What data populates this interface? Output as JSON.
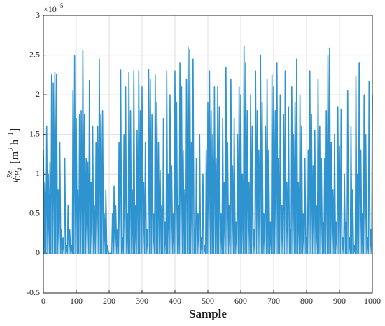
{
  "chart_data": {
    "type": "line",
    "xlabel": "Sample",
    "ylabel": {
      "base": "v",
      "sub": "CH",
      "subsub": "4",
      "sup": "Re",
      "unit_open": "[m",
      "unit_sup": "3",
      "unit_mid": " h",
      "unit_mid_sup": "−1",
      "unit_close": "]"
    },
    "y_multiplier": {
      "base": "×10",
      "exp": "−5"
    },
    "xlim": [
      0,
      1000
    ],
    "xticks": [
      0,
      100,
      200,
      300,
      400,
      500,
      600,
      700,
      800,
      900,
      1000
    ],
    "ylim": [
      -0.5,
      3
    ],
    "yticks": [
      -0.5,
      0,
      0.5,
      1,
      1.5,
      2,
      2.5,
      3
    ],
    "grid": true,
    "series": [
      {
        "color": "#2f93cf",
        "x": [
          0,
          3,
          5,
          8,
          10,
          13,
          15,
          18,
          20,
          23,
          25,
          28,
          30,
          33,
          35,
          38,
          40,
          43,
          45,
          48,
          50,
          53,
          55,
          58,
          60,
          63,
          65,
          68,
          70,
          73,
          75,
          78,
          80,
          83,
          85,
          88,
          90,
          93,
          95,
          98,
          100,
          103,
          105,
          108,
          110,
          113,
          115,
          118,
          120,
          123,
          125,
          128,
          130,
          133,
          135,
          138,
          140,
          143,
          145,
          148,
          150,
          153,
          155,
          158,
          160,
          163,
          165,
          168,
          170,
          173,
          175,
          178,
          180,
          183,
          185,
          188,
          190,
          193,
          195,
          198,
          200,
          203,
          205,
          208,
          210,
          213,
          215,
          218,
          220,
          223,
          225,
          228,
          230,
          233,
          235,
          238,
          240,
          243,
          245,
          248,
          250,
          253,
          255,
          258,
          260,
          263,
          265,
          268,
          270,
          273,
          275,
          278,
          280,
          283,
          285,
          288,
          290,
          293,
          295,
          298,
          300,
          303,
          305,
          308,
          310,
          313,
          315,
          318,
          320,
          323,
          325,
          328,
          330,
          333,
          335,
          338,
          340,
          343,
          345,
          348,
          350,
          353,
          355,
          358,
          360,
          363,
          365,
          368,
          370,
          373,
          375,
          378,
          380,
          383,
          385,
          388,
          390,
          393,
          395,
          398,
          400,
          403,
          405,
          408,
          410,
          413,
          415,
          418,
          420,
          423,
          425,
          428,
          430,
          433,
          435,
          438,
          440,
          443,
          445,
          448,
          450,
          453,
          455,
          458,
          460,
          463,
          465,
          468,
          470,
          473,
          475,
          478,
          480,
          483,
          485,
          488,
          490,
          493,
          495,
          498,
          500,
          503,
          505,
          508,
          510,
          513,
          515,
          518,
          520,
          523,
          525,
          528,
          530,
          533,
          535,
          538,
          540,
          543,
          545,
          548,
          550,
          553,
          555,
          558,
          560,
          563,
          565,
          568,
          570,
          573,
          575,
          578,
          580,
          583,
          585,
          588,
          590,
          593,
          595,
          598,
          600,
          603,
          605,
          608,
          610,
          613,
          615,
          618,
          620,
          623,
          625,
          628,
          630,
          633,
          635,
          638,
          640,
          643,
          645,
          648,
          650,
          653,
          655,
          658,
          660,
          663,
          665,
          668,
          670,
          673,
          675,
          678,
          680,
          683,
          685,
          688,
          690,
          693,
          695,
          698,
          700,
          703,
          705,
          708,
          710,
          713,
          715,
          718,
          720,
          723,
          725,
          728,
          730,
          733,
          735,
          738,
          740,
          743,
          745,
          748,
          750,
          753,
          755,
          758,
          760,
          763,
          765,
          768,
          770,
          773,
          775,
          778,
          780,
          783,
          785,
          788,
          790,
          793,
          795,
          798,
          800,
          803,
          805,
          808,
          810,
          813,
          815,
          818,
          820,
          823,
          825,
          828,
          830,
          833,
          835,
          838,
          840,
          843,
          845,
          848,
          850,
          853,
          855,
          858,
          860,
          863,
          865,
          868,
          870,
          873,
          875,
          878,
          880,
          883,
          885,
          888,
          890,
          893,
          895,
          898,
          900,
          903,
          905,
          908,
          910,
          913,
          915,
          918,
          920,
          923,
          925,
          928,
          930,
          933,
          935,
          938,
          940,
          943,
          945,
          948,
          950,
          953,
          955,
          958,
          960,
          963,
          965,
          968,
          970,
          973,
          975,
          978,
          980,
          983,
          985,
          988,
          990,
          993,
          995,
          998,
          1000
        ],
        "values": [
          1.3,
          0,
          0.9,
          0,
          1.6,
          0,
          1.0,
          0,
          1.15,
          0,
          2.25,
          0,
          2.15,
          0,
          2.28,
          0,
          2.26,
          0,
          0.8,
          0,
          1.4,
          0,
          0.3,
          0,
          0.2,
          0,
          1.2,
          0,
          0.1,
          0,
          0.6,
          0,
          0.3,
          0,
          0.1,
          0,
          2.05,
          0,
          2.49,
          0,
          1.7,
          0,
          0.8,
          0,
          1.75,
          0,
          1.8,
          0,
          2.56,
          0,
          1.75,
          0,
          1.2,
          0,
          1.15,
          0,
          2.18,
          0,
          0.9,
          0,
          1.6,
          0,
          0.6,
          0,
          1.4,
          0,
          1.6,
          0,
          2.45,
          0,
          1.75,
          0,
          1.8,
          0,
          0.5,
          0,
          0.8,
          0,
          0.1,
          0,
          0,
          0,
          0,
          0,
          0.5,
          0,
          0.85,
          0,
          0.6,
          0,
          0.3,
          0,
          1.4,
          0,
          2.31,
          0,
          0.2,
          0,
          1.5,
          0,
          2.1,
          0,
          0.5,
          0,
          2.28,
          0,
          1.8,
          0,
          0.8,
          0,
          2.3,
          0,
          0.6,
          0,
          1.55,
          0,
          2.3,
          0,
          1.8,
          0,
          2.1,
          0,
          0.9,
          0,
          1.4,
          0,
          0.3,
          0,
          2.32,
          0,
          2.2,
          0,
          1.75,
          0,
          0.5,
          0,
          2.25,
          0,
          1.9,
          0,
          1.4,
          0,
          1.05,
          0,
          0.6,
          0,
          1.7,
          0,
          0.4,
          0,
          2.3,
          0,
          1.0,
          0,
          2.0,
          0,
          1.1,
          0,
          0.5,
          0,
          2.3,
          0,
          1.9,
          0,
          0.6,
          0,
          2.4,
          0,
          2.1,
          0,
          1.3,
          0,
          0.8,
          0,
          2.2,
          0,
          2.6,
          0,
          2.57,
          0,
          1.4,
          0,
          2.45,
          0,
          0.3,
          0,
          1.2,
          0,
          0.5,
          0,
          1.5,
          0,
          0.2,
          0,
          1.0,
          0,
          0.1,
          0,
          1.3,
          0,
          1.9,
          0,
          2.3,
          0,
          1.8,
          0,
          1.5,
          0,
          2.1,
          0,
          1.2,
          0,
          2.1,
          0,
          1.85,
          0,
          0.5,
          0,
          1.7,
          0,
          0.9,
          0,
          2.35,
          0,
          1.4,
          0,
          0.6,
          0,
          2.2,
          0,
          1.1,
          0,
          1.7,
          0,
          0.4,
          0,
          1.5,
          0,
          2.1,
          0,
          2.0,
          0,
          1.0,
          0,
          2.61,
          0,
          2.4,
          0,
          1.8,
          0,
          0.9,
          0,
          2.0,
          0,
          1.6,
          0,
          0.3,
          0,
          2.3,
          0,
          1.8,
          0,
          1.3,
          0,
          2.5,
          0,
          1.9,
          0,
          0.5,
          0,
          1.6,
          0,
          2.2,
          0,
          1.3,
          0,
          0.4,
          0,
          2.25,
          0,
          2.1,
          0,
          1.8,
          0,
          2.4,
          0,
          1.2,
          0,
          2.0,
          0,
          0.6,
          0,
          1.75,
          0,
          2.3,
          0,
          0.9,
          0,
          1.85,
          0,
          0.3,
          0,
          2.1,
          0,
          1.5,
          0,
          1.9,
          0,
          2.45,
          0,
          0.9,
          0,
          2.0,
          0,
          1.6,
          0,
          0.5,
          0,
          1.2,
          0,
          0.2,
          0,
          1.3,
          0,
          2.3,
          0,
          1.75,
          0,
          1.1,
          0,
          1.55,
          0,
          0.6,
          0,
          2.2,
          0,
          1.6,
          0,
          1.2,
          0,
          0.4,
          0,
          1.2,
          0,
          1.8,
          0,
          2.5,
          0,
          2.59,
          0,
          1.4,
          0,
          0.8,
          0,
          1.5,
          0,
          0.4,
          0,
          1.85,
          0,
          1.35,
          0,
          1.82,
          0,
          0.2,
          0,
          1.0,
          0,
          0.4,
          0,
          2.05,
          0,
          0.2,
          0,
          1.6,
          0,
          0.8,
          0,
          0.1,
          0,
          2.23,
          0,
          1.0,
          0,
          2.4,
          0,
          1.3,
          0,
          0.5,
          0,
          2.0,
          0,
          1.5,
          0,
          0.2,
          0,
          2.17,
          0,
          0.3,
          0,
          2.0
        ]
      }
    ]
  }
}
